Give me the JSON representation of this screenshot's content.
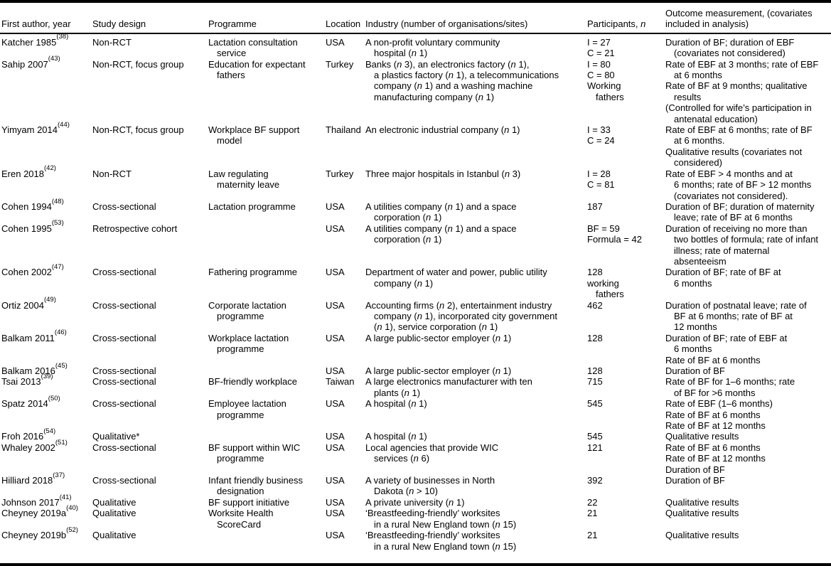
{
  "page": {
    "background": "#ffffff",
    "text_color": "#000000",
    "rule_color": "#000000"
  },
  "table": {
    "columns": [
      {
        "key": "author",
        "label": "First author, year"
      },
      {
        "key": "design",
        "label": "Study design"
      },
      {
        "key": "programme",
        "label": "Programme"
      },
      {
        "key": "location",
        "label": "Location"
      },
      {
        "key": "industry",
        "label": "Industry (number of organisations/sites)"
      },
      {
        "key": "participants",
        "label": "Participants, *n*"
      },
      {
        "key": "outcome",
        "label": "Outcome measurement, (covariates included in analysis)"
      }
    ],
    "rows": [
      [
        [
          [
            0,
            "Katcher 1985^{(38)}"
          ]
        ],
        [
          [
            0,
            "Non-RCT"
          ]
        ],
        [
          [
            0,
            "Lactation consultation"
          ],
          [
            1,
            "service"
          ]
        ],
        [
          [
            0,
            "USA"
          ]
        ],
        [
          [
            0,
            "A non-profit voluntary community"
          ],
          [
            1,
            "hospital (*n* 1)"
          ]
        ],
        [
          [
            0,
            "I = 27"
          ],
          [
            0,
            "C = 21"
          ]
        ],
        [
          [
            0,
            "Duration of BF; duration of EBF"
          ],
          [
            1,
            "(covariates not considered)"
          ]
        ]
      ],
      [
        [
          [
            0,
            "Sahip 2007^{(43)}"
          ]
        ],
        [
          [
            0,
            "Non-RCT, focus group"
          ]
        ],
        [
          [
            0,
            "Education for expectant"
          ],
          [
            1,
            "fathers"
          ]
        ],
        [
          [
            0,
            "Turkey"
          ]
        ],
        [
          [
            0,
            "Banks (*n* 3), an electronics factory (*n* 1),"
          ],
          [
            1,
            "a plastics factory (*n* 1), a telecommunications"
          ],
          [
            1,
            "company (*n* 1) and a washing machine"
          ],
          [
            1,
            "manufacturing company (*n* 1)"
          ]
        ],
        [
          [
            0,
            "I = 80"
          ],
          [
            0,
            "C = 80"
          ],
          [
            0,
            "Working"
          ],
          [
            1,
            "fathers"
          ]
        ],
        [
          [
            0,
            "Rate of EBF at 3 months; rate of EBF"
          ],
          [
            1,
            "at 6 months"
          ],
          [
            0,
            "Rate of BF at 9 months; qualitative"
          ],
          [
            1,
            "results"
          ],
          [
            0,
            "(Controlled for wife’s participation in"
          ],
          [
            1,
            "antenatal education)"
          ]
        ]
      ],
      [
        [
          [
            0,
            "Yimyam 2014^{(44)}"
          ]
        ],
        [
          [
            0,
            "Non-RCT, focus group"
          ]
        ],
        [
          [
            0,
            "Workplace BF support"
          ],
          [
            1,
            "model"
          ]
        ],
        [
          [
            0,
            "Thailand"
          ]
        ],
        [
          [
            0,
            "An electronic industrial company (*n* 1)"
          ]
        ],
        [
          [
            0,
            "I = 33"
          ],
          [
            0,
            "C = 24"
          ]
        ],
        [
          [
            0,
            "Rate of EBF at 6 months; rate of BF"
          ],
          [
            1,
            "at 6 months."
          ],
          [
            0,
            "Qualitative results (covariates not"
          ],
          [
            1,
            "considered)"
          ]
        ]
      ],
      [
        [
          [
            0,
            "Eren 2018^{(42)}"
          ]
        ],
        [
          [
            0,
            "Non-RCT"
          ]
        ],
        [
          [
            0,
            "Law regulating"
          ],
          [
            1,
            "maternity leave"
          ]
        ],
        [
          [
            0,
            "Turkey"
          ]
        ],
        [
          [
            0,
            "Three major hospitals in Istanbul (*n* 3)"
          ]
        ],
        [
          [
            0,
            "I = 28"
          ],
          [
            0,
            "C = 81"
          ]
        ],
        [
          [
            0,
            "Rate of EBF > 4 months and at"
          ],
          [
            1,
            "6 months; rate of BF > 12 months"
          ],
          [
            1,
            "(covariates not considered)."
          ]
        ]
      ],
      [
        [
          [
            0,
            "Cohen 1994^{(48)}"
          ]
        ],
        [
          [
            0,
            "Cross-sectional"
          ]
        ],
        [
          [
            0,
            "Lactation programme"
          ]
        ],
        [
          [
            0,
            "USA"
          ]
        ],
        [
          [
            0,
            "A utilities company (*n* 1) and a space"
          ],
          [
            1,
            "corporation (*n* 1)"
          ]
        ],
        [
          [
            0,
            "187"
          ]
        ],
        [
          [
            0,
            "Duration of BF; duration of maternity"
          ],
          [
            1,
            "leave; rate of BF at 6 months"
          ]
        ]
      ],
      [
        [
          [
            0,
            "Cohen 1995^{(53)}"
          ]
        ],
        [
          [
            0,
            "Retrospective cohort"
          ]
        ],
        [],
        [
          [
            0,
            "USA"
          ]
        ],
        [
          [
            0,
            "A utilities company (*n* 1) and a space"
          ],
          [
            1,
            "corporation (*n* 1)"
          ]
        ],
        [
          [
            0,
            "BF = 59"
          ],
          [
            0,
            "Formula = 42"
          ]
        ],
        [
          [
            0,
            "Duration of receiving no more than"
          ],
          [
            1,
            "two bottles of formula; rate of infant"
          ],
          [
            1,
            "illness; rate of maternal"
          ],
          [
            1,
            "absenteeism"
          ]
        ]
      ],
      [
        [
          [
            0,
            "Cohen 2002^{(47)}"
          ]
        ],
        [
          [
            0,
            "Cross-sectional"
          ]
        ],
        [
          [
            0,
            "Fathering programme"
          ]
        ],
        [
          [
            0,
            "USA"
          ]
        ],
        [
          [
            0,
            "Department of water and power, public utility"
          ],
          [
            1,
            "company (*n* 1)"
          ]
        ],
        [
          [
            0,
            "128"
          ],
          [
            0,
            "working"
          ],
          [
            1,
            "fathers"
          ]
        ],
        [
          [
            0,
            "Duration of BF; rate of BF at"
          ],
          [
            1,
            "6 months"
          ]
        ]
      ],
      [
        [
          [
            0,
            "Ortiz 2004^{(49)}"
          ]
        ],
        [
          [
            0,
            "Cross-sectional"
          ]
        ],
        [
          [
            0,
            "Corporate lactation"
          ],
          [
            1,
            "programme"
          ]
        ],
        [
          [
            0,
            "USA"
          ]
        ],
        [
          [
            0,
            "Accounting firms (*n* 2), entertainment industry"
          ],
          [
            1,
            "company (*n* 1), incorporated city government"
          ],
          [
            1,
            "(*n* 1), service corporation (*n* 1)"
          ]
        ],
        [
          [
            0,
            "462"
          ]
        ],
        [
          [
            0,
            "Duration of postnatal leave; rate of"
          ],
          [
            1,
            "BF at 6 months; rate of BF at"
          ],
          [
            1,
            "12 months"
          ]
        ]
      ],
      [
        [
          [
            0,
            "Balkam 2011^{(46)}"
          ]
        ],
        [
          [
            0,
            "Cross-sectional"
          ]
        ],
        [
          [
            0,
            "Workplace lactation"
          ],
          [
            1,
            "programme"
          ]
        ],
        [
          [
            0,
            "USA"
          ]
        ],
        [
          [
            0,
            "A large public-sector employer (*n* 1)"
          ]
        ],
        [
          [
            0,
            "128"
          ]
        ],
        [
          [
            0,
            "Duration of BF; rate of EBF at"
          ],
          [
            1,
            "6 months"
          ],
          [
            0,
            "Rate of BF at 6 months"
          ]
        ]
      ],
      [
        [
          [
            0,
            "Balkam 2016^{(45)}"
          ]
        ],
        [
          [
            0,
            "Cross-sectional"
          ]
        ],
        [],
        [
          [
            0,
            "USA"
          ]
        ],
        [
          [
            0,
            "A large public-sector employer (*n* 1)"
          ]
        ],
        [
          [
            0,
            "128"
          ]
        ],
        [
          [
            0,
            "Duration of BF"
          ]
        ]
      ],
      [
        [
          [
            0,
            "Tsai 2013^{(39)}"
          ]
        ],
        [
          [
            0,
            "Cross-sectional"
          ]
        ],
        [
          [
            0,
            "BF-friendly workplace"
          ]
        ],
        [
          [
            0,
            "Taiwan"
          ]
        ],
        [
          [
            0,
            "A large electronics manufacturer with ten"
          ],
          [
            1,
            "plants (*n* 1)"
          ]
        ],
        [
          [
            0,
            "715"
          ]
        ],
        [
          [
            0,
            "Rate of BF for 1–6 months; rate"
          ],
          [
            1,
            "of BF for >6 months"
          ]
        ]
      ],
      [
        [
          [
            0,
            "Spatz 2014^{(50)}"
          ]
        ],
        [
          [
            0,
            "Cross-sectional"
          ]
        ],
        [
          [
            0,
            "Employee lactation"
          ],
          [
            1,
            "programme"
          ]
        ],
        [
          [
            0,
            "USA"
          ]
        ],
        [
          [
            0,
            "A hospital (*n* 1)"
          ]
        ],
        [
          [
            0,
            "545"
          ]
        ],
        [
          [
            0,
            "Rate of EBF (1–6 months)"
          ],
          [
            0,
            "Rate of BF at 6 months"
          ],
          [
            0,
            "Rate of BF at 12 months"
          ]
        ]
      ],
      [
        [
          [
            0,
            "Froh 2016^{(54)}"
          ]
        ],
        [
          [
            0,
            "Qualitative*"
          ]
        ],
        [],
        [
          [
            0,
            "USA"
          ]
        ],
        [
          [
            0,
            "A hospital (*n* 1)"
          ]
        ],
        [
          [
            0,
            "545"
          ]
        ],
        [
          [
            0,
            "Qualitative results"
          ]
        ]
      ],
      [
        [
          [
            0,
            "Whaley 2002^{(51)}"
          ]
        ],
        [
          [
            0,
            "Cross-sectional"
          ]
        ],
        [
          [
            0,
            "BF support within WIC"
          ],
          [
            1,
            "programme"
          ]
        ],
        [
          [
            0,
            "USA"
          ]
        ],
        [
          [
            0,
            "Local agencies that provide WIC"
          ],
          [
            1,
            "services (*n* 6)"
          ]
        ],
        [
          [
            0,
            "121"
          ]
        ],
        [
          [
            0,
            "Rate of BF at 6 months"
          ],
          [
            0,
            "Rate of BF at 12 months"
          ],
          [
            0,
            "Duration of BF"
          ]
        ]
      ],
      [
        [
          [
            0,
            "Hilliard 2018^{(37)}"
          ]
        ],
        [
          [
            0,
            "Cross-sectional"
          ]
        ],
        [
          [
            0,
            "Infant friendly business"
          ],
          [
            1,
            "designation"
          ]
        ],
        [
          [
            0,
            "USA"
          ]
        ],
        [
          [
            0,
            "A variety of businesses in North"
          ],
          [
            1,
            "Dakota (*n* > 10)"
          ]
        ],
        [
          [
            0,
            "392"
          ]
        ],
        [
          [
            0,
            "Duration of BF"
          ]
        ]
      ],
      [
        [
          [
            0,
            "Johnson 2017^{(41)}"
          ]
        ],
        [
          [
            0,
            "Qualitative"
          ]
        ],
        [
          [
            0,
            "BF support initiative"
          ]
        ],
        [
          [
            0,
            "USA"
          ]
        ],
        [
          [
            0,
            "A private university (*n* 1)"
          ]
        ],
        [
          [
            0,
            "22"
          ]
        ],
        [
          [
            0,
            "Qualitative results"
          ]
        ]
      ],
      [
        [
          [
            0,
            "Cheyney 2019a^{(40)}"
          ]
        ],
        [
          [
            0,
            "Qualitative"
          ]
        ],
        [
          [
            0,
            "Worksite Health"
          ],
          [
            1,
            "ScoreCard"
          ]
        ],
        [
          [
            0,
            "USA"
          ]
        ],
        [
          [
            0,
            "‘Breastfeeding-friendly’ worksites"
          ],
          [
            1,
            "in a rural New England town (*n* 15)"
          ]
        ],
        [
          [
            0,
            "21"
          ]
        ],
        [
          [
            0,
            "Qualitative results"
          ]
        ]
      ],
      [
        [
          [
            0,
            "Cheyney 2019b^{(52)}"
          ]
        ],
        [
          [
            0,
            "Qualitative"
          ]
        ],
        [],
        [
          [
            0,
            "USA"
          ]
        ],
        [
          [
            0,
            "‘Breastfeeding-friendly’ worksites"
          ],
          [
            1,
            "in a rural New England town (*n* 15)"
          ]
        ],
        [
          [
            0,
            "21"
          ]
        ],
        [
          [
            0,
            "Qualitative results"
          ]
        ]
      ]
    ]
  }
}
